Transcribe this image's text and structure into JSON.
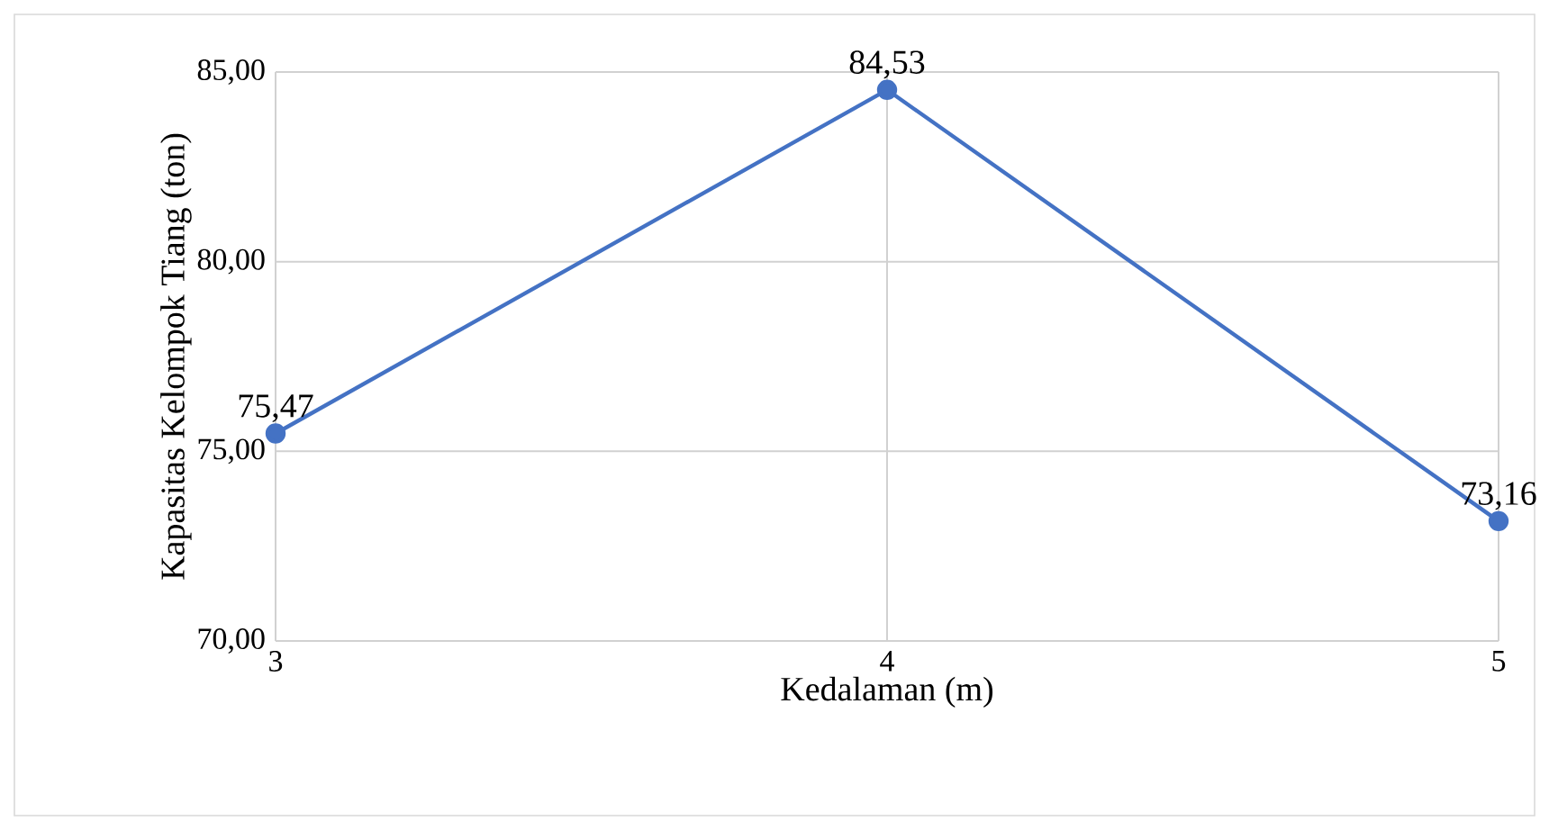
{
  "chart_data": {
    "type": "line",
    "xlabel": "Kedalaman (m)",
    "ylabel": "Kapasitas Kelompok Tiang (ton)",
    "x": [
      3,
      4,
      5
    ],
    "series": [
      {
        "color": "#4472c4",
        "values": [
          75.47,
          84.53,
          73.16
        ],
        "value_labels": [
          "75,47",
          "84,53",
          "73,16"
        ]
      }
    ],
    "xlim": [
      3,
      5
    ],
    "xticks": [
      3,
      4,
      5
    ],
    "ylim": [
      70,
      85
    ],
    "yticks": [
      {
        "value": 70,
        "label": "70,00"
      },
      {
        "value": 75,
        "label": "75,00"
      },
      {
        "value": 80,
        "label": "80,00"
      },
      {
        "value": 85,
        "label": "85,00"
      }
    ],
    "grid": true,
    "marker": "circle",
    "line_style": "solid"
  }
}
